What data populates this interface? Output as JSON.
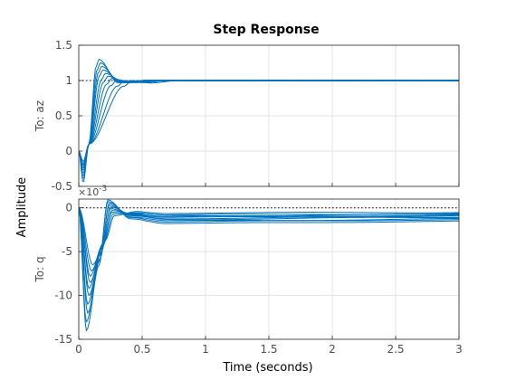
{
  "chart_data": {
    "type": "line",
    "title": "Step Response",
    "xlabel": "Time (seconds)",
    "ylabel": "Amplitude",
    "xlim": [
      0,
      3
    ],
    "x_ticks": [
      0,
      0.5,
      1,
      1.5,
      2,
      2.5,
      3
    ],
    "x_tick_labels": [
      "0",
      "0.5",
      "1",
      "1.5",
      "2",
      "2.5",
      "3"
    ],
    "grid": true,
    "line_color": "#0072bd",
    "subplots": [
      {
        "name": "To: az",
        "ylim": [
          -0.5,
          1.5
        ],
        "y_ticks": [
          -0.5,
          0,
          0.5,
          1,
          1.5
        ],
        "y_tick_labels": [
          "-0.5",
          "0",
          "0.5",
          "1",
          "1.5"
        ],
        "steady_state_reference": 1,
        "series": [
          {
            "undershoot": -0.45,
            "overshoot": 1.3,
            "peak_time": 0.16
          },
          {
            "undershoot": -0.4,
            "overshoot": 1.25,
            "peak_time": 0.17
          },
          {
            "undershoot": -0.36,
            "overshoot": 1.2,
            "peak_time": 0.18
          },
          {
            "undershoot": -0.32,
            "overshoot": 1.15,
            "peak_time": 0.19
          },
          {
            "undershoot": -0.28,
            "overshoot": 1.1,
            "peak_time": 0.21
          },
          {
            "undershoot": -0.25,
            "overshoot": 1.06,
            "peak_time": 0.23
          },
          {
            "undershoot": -0.22,
            "overshoot": 1.03,
            "peak_time": 0.26
          },
          {
            "undershoot": -0.2,
            "overshoot": 1.01,
            "peak_time": 0.3
          },
          {
            "undershoot": -0.18,
            "overshoot": 1.0,
            "peak_time": 0.36
          },
          {
            "undershoot": -0.15,
            "overshoot": 1.0,
            "peak_time": 0.42
          }
        ]
      },
      {
        "name": "To: q",
        "ylim": [
          -15,
          1
        ],
        "y_ticks": [
          -15,
          -10,
          -5,
          0
        ],
        "y_tick_labels": [
          "-15",
          "-10",
          "-5",
          "0"
        ],
        "exponent_label": "×10",
        "exponent_power": "-3",
        "steady_state_reference": 0,
        "series": [
          {
            "trough": -14.0,
            "trough_time": 0.06,
            "peak": 0.9,
            "final": -1.8
          },
          {
            "trough": -13.0,
            "trough_time": 0.06,
            "peak": 0.7,
            "final": -1.6
          },
          {
            "trough": -12.0,
            "trough_time": 0.07,
            "peak": 0.5,
            "final": -1.5
          },
          {
            "trough": -11.0,
            "trough_time": 0.07,
            "peak": 0.3,
            "final": -1.3
          },
          {
            "trough": -10.0,
            "trough_time": 0.08,
            "peak": 0.1,
            "final": -1.2
          },
          {
            "trough": -9.2,
            "trough_time": 0.08,
            "peak": -0.1,
            "final": -1.1
          },
          {
            "trough": -8.5,
            "trough_time": 0.09,
            "peak": -0.3,
            "final": -1.0
          },
          {
            "trough": -7.8,
            "trough_time": 0.09,
            "peak": -0.5,
            "final": -0.9
          },
          {
            "trough": -7.2,
            "trough_time": 0.1,
            "peak": -0.7,
            "final": -0.8
          },
          {
            "trough": -6.5,
            "trough_time": 0.11,
            "peak": -0.9,
            "final": -0.6
          }
        ]
      }
    ]
  }
}
